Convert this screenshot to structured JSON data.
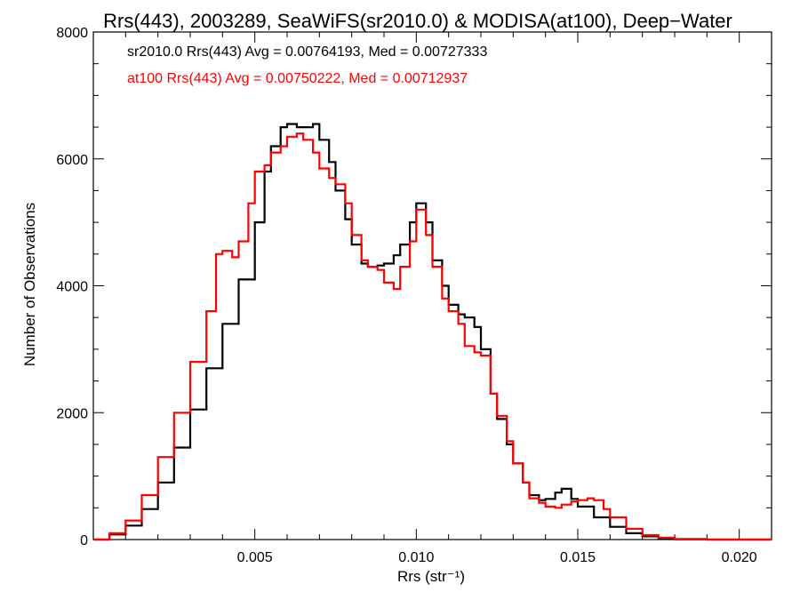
{
  "chart_data": {
    "type": "line",
    "title": "Rrs(443), 2003289, SeaWiFS(sr2010.0) & MODISA(at100), Deep−Water",
    "xlabel": "Rrs (str⁻¹)",
    "ylabel": "Number of Observations",
    "xlim": [
      0.0,
      0.021
    ],
    "ylim": [
      0,
      8000
    ],
    "x_ticks": [
      0.005,
      0.01,
      0.015,
      0.02
    ],
    "x_tick_labels": [
      "0.005",
      "0.010",
      "0.015",
      "0.020"
    ],
    "y_ticks": [
      0,
      2000,
      4000,
      6000,
      8000
    ],
    "y_tick_labels": [
      "0",
      "2000",
      "4000",
      "6000",
      "8000"
    ],
    "legend_placement": "top-left",
    "grid": false,
    "step": true,
    "series": [
      {
        "label": "sr2010.0 Rrs(443) Avg = 0.00764193, Med = 0.00727333",
        "color": "#000000",
        "points": [
          [
            0.0,
            0
          ],
          [
            0.0005,
            80
          ],
          [
            0.001,
            220
          ],
          [
            0.0015,
            480
          ],
          [
            0.002,
            900
          ],
          [
            0.0025,
            1450
          ],
          [
            0.003,
            2050
          ],
          [
            0.0035,
            2700
          ],
          [
            0.004,
            3400
          ],
          [
            0.0045,
            4100
          ],
          [
            0.005,
            5000
          ],
          [
            0.0053,
            5800
          ],
          [
            0.0055,
            6200
          ],
          [
            0.0058,
            6500
          ],
          [
            0.006,
            6550
          ],
          [
            0.0063,
            6500
          ],
          [
            0.0065,
            6500
          ],
          [
            0.0068,
            6550
          ],
          [
            0.007,
            6300
          ],
          [
            0.0073,
            5950
          ],
          [
            0.0075,
            5500
          ],
          [
            0.0078,
            5050
          ],
          [
            0.008,
            4650
          ],
          [
            0.0083,
            4350
          ],
          [
            0.0085,
            4300
          ],
          [
            0.0088,
            4320
          ],
          [
            0.009,
            4350
          ],
          [
            0.0093,
            4480
          ],
          [
            0.0095,
            4650
          ],
          [
            0.0098,
            5000
          ],
          [
            0.01,
            5300
          ],
          [
            0.0103,
            5000
          ],
          [
            0.0105,
            4400
          ],
          [
            0.0108,
            4000
          ],
          [
            0.011,
            3700
          ],
          [
            0.0113,
            3550
          ],
          [
            0.0115,
            3500
          ],
          [
            0.0118,
            3350
          ],
          [
            0.012,
            3000
          ],
          [
            0.0123,
            2300
          ],
          [
            0.0125,
            1900
          ],
          [
            0.0128,
            1500
          ],
          [
            0.013,
            1200
          ],
          [
            0.0133,
            900
          ],
          [
            0.0135,
            700
          ],
          [
            0.0138,
            620
          ],
          [
            0.014,
            640
          ],
          [
            0.0143,
            740
          ],
          [
            0.0145,
            800
          ],
          [
            0.0148,
            640
          ],
          [
            0.015,
            520
          ],
          [
            0.0155,
            350
          ],
          [
            0.016,
            200
          ],
          [
            0.0165,
            100
          ],
          [
            0.017,
            50
          ],
          [
            0.0175,
            20
          ],
          [
            0.018,
            5
          ],
          [
            0.019,
            0
          ],
          [
            0.021,
            0
          ]
        ]
      },
      {
        "label": "at100 Rrs(443) Avg = 0.00750222, Med = 0.00712937",
        "color": "#ff0000",
        "points": [
          [
            0.0,
            0
          ],
          [
            0.0005,
            100
          ],
          [
            0.001,
            300
          ],
          [
            0.0015,
            700
          ],
          [
            0.002,
            1300
          ],
          [
            0.0025,
            2000
          ],
          [
            0.003,
            2800
          ],
          [
            0.0035,
            3600
          ],
          [
            0.0038,
            4500
          ],
          [
            0.004,
            4550
          ],
          [
            0.0043,
            4450
          ],
          [
            0.0045,
            4700
          ],
          [
            0.0048,
            5300
          ],
          [
            0.005,
            5800
          ],
          [
            0.0053,
            5900
          ],
          [
            0.0055,
            6100
          ],
          [
            0.0058,
            6200
          ],
          [
            0.006,
            6350
          ],
          [
            0.0063,
            6400
          ],
          [
            0.0065,
            6300
          ],
          [
            0.0068,
            6100
          ],
          [
            0.007,
            5850
          ],
          [
            0.0073,
            5700
          ],
          [
            0.0075,
            5600
          ],
          [
            0.0078,
            5300
          ],
          [
            0.008,
            4800
          ],
          [
            0.0083,
            4400
          ],
          [
            0.0085,
            4300
          ],
          [
            0.0088,
            4250
          ],
          [
            0.009,
            4050
          ],
          [
            0.0093,
            3950
          ],
          [
            0.0095,
            4300
          ],
          [
            0.0098,
            4700
          ],
          [
            0.01,
            5200
          ],
          [
            0.0103,
            4800
          ],
          [
            0.0105,
            4300
          ],
          [
            0.0108,
            3800
          ],
          [
            0.011,
            3600
          ],
          [
            0.0113,
            3400
          ],
          [
            0.0115,
            3050
          ],
          [
            0.0118,
            2950
          ],
          [
            0.012,
            2900
          ],
          [
            0.0123,
            2300
          ],
          [
            0.0125,
            1950
          ],
          [
            0.0128,
            1550
          ],
          [
            0.013,
            1200
          ],
          [
            0.0133,
            900
          ],
          [
            0.0135,
            650
          ],
          [
            0.0138,
            580
          ],
          [
            0.014,
            520
          ],
          [
            0.0143,
            500
          ],
          [
            0.0145,
            550
          ],
          [
            0.0148,
            600
          ],
          [
            0.015,
            620
          ],
          [
            0.0153,
            650
          ],
          [
            0.0155,
            620
          ],
          [
            0.0158,
            480
          ],
          [
            0.016,
            350
          ],
          [
            0.0165,
            170
          ],
          [
            0.017,
            70
          ],
          [
            0.0175,
            30
          ],
          [
            0.018,
            10
          ],
          [
            0.019,
            0
          ],
          [
            0.021,
            0
          ]
        ]
      }
    ]
  }
}
